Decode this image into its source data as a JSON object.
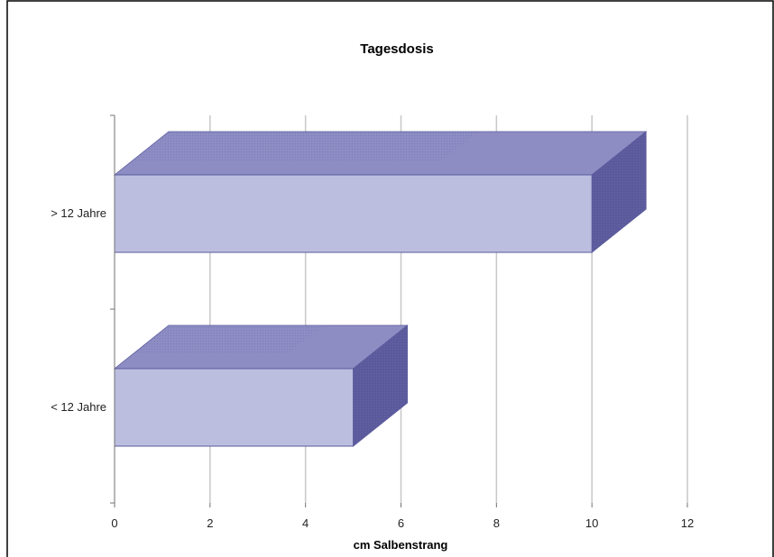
{
  "chart_data": {
    "type": "bar",
    "orientation": "horizontal",
    "style": "3d",
    "title": "Tagesdosis",
    "xlabel": "cm Salbenstrang",
    "ylabel": "",
    "categories": [
      "> 12 Jahre",
      "< 12 Jahre"
    ],
    "values": [
      10,
      5
    ],
    "xlim": [
      0,
      12
    ],
    "x_ticks": [
      "0",
      "2",
      "4",
      "6",
      "8",
      "10",
      "12"
    ],
    "grid": true,
    "legend": "none",
    "colors": {
      "bar_front": "#bcbee0",
      "bar_top": "#8d8dc4",
      "bar_side": "#5a5a9c",
      "grid": "#c8c8c8",
      "axis": "#707070"
    }
  }
}
